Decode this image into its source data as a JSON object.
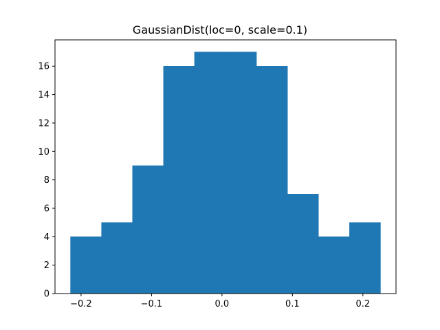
{
  "chart_data": {
    "type": "bar",
    "title": "GaussianDist(loc=0, scale=0.1)",
    "xlabel": "",
    "ylabel": "",
    "bin_edges": [
      -0.215,
      -0.171,
      -0.127,
      -0.083,
      -0.039,
      0.005,
      0.049,
      0.093,
      0.137,
      0.181,
      0.225
    ],
    "counts": [
      4,
      5,
      9,
      16,
      17,
      17,
      16,
      7,
      4,
      5
    ],
    "xlim": [
      -0.237,
      0.247
    ],
    "ylim": [
      0,
      17.85
    ],
    "xticks": [
      -0.2,
      -0.1,
      0.0,
      0.1,
      0.2
    ],
    "xtick_labels": [
      "−0.2",
      "−0.1",
      "0.0",
      "0.1",
      "0.2"
    ],
    "yticks": [
      0,
      2,
      4,
      6,
      8,
      10,
      12,
      14,
      16
    ],
    "ytick_labels": [
      "0",
      "2",
      "4",
      "6",
      "8",
      "10",
      "12",
      "14",
      "16"
    ],
    "bar_color": "#1f77b4",
    "grid": false,
    "legend": "none"
  }
}
